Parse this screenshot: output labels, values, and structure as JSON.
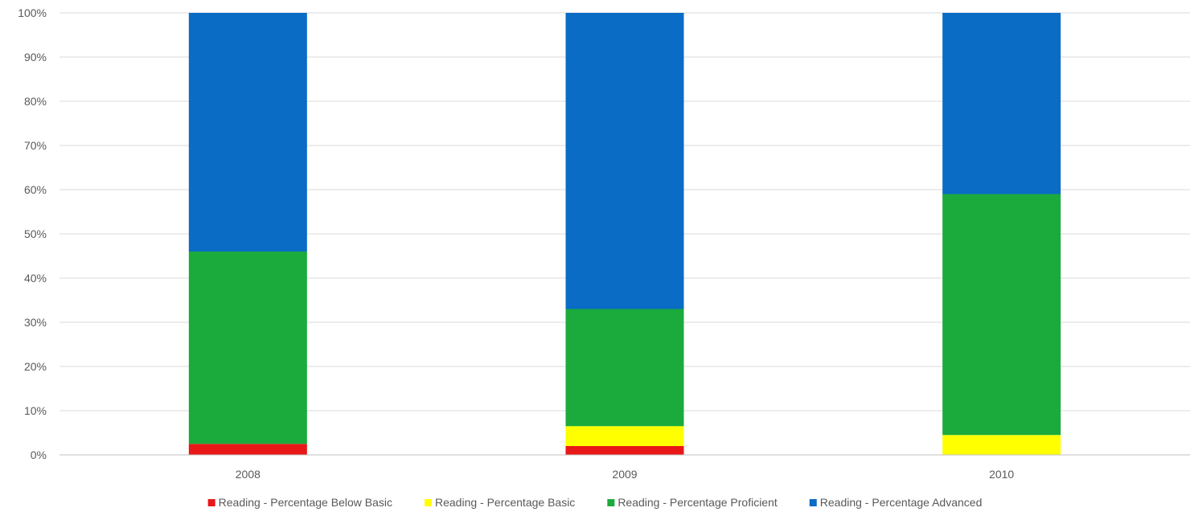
{
  "chart_data": {
    "type": "bar",
    "stacked": true,
    "percent_stacked": true,
    "categories": [
      "2008",
      "2009",
      "2010"
    ],
    "series": [
      {
        "name": "Reading - Percentage Below Basic",
        "color": "#e81818",
        "values": [
          2.5,
          2,
          0
        ]
      },
      {
        "name": "Reading - Percentage Basic",
        "color": "#ffff00",
        "values": [
          0,
          4.5,
          4.5
        ]
      },
      {
        "name": "Reading - Percentage Proficient",
        "color": "#1aab3c",
        "values": [
          43.5,
          26.5,
          54.5
        ]
      },
      {
        "name": "Reading - Percentage Advanced",
        "color": "#0a6cc4",
        "values": [
          54,
          67,
          41
        ]
      }
    ],
    "ylim": [
      0,
      100
    ],
    "y_ticks": [
      "0%",
      "10%",
      "20%",
      "30%",
      "40%",
      "50%",
      "60%",
      "70%",
      "80%",
      "90%",
      "100%"
    ],
    "xlabel": "",
    "ylabel": "",
    "title": "",
    "grid": true,
    "legend_position": "bottom"
  }
}
